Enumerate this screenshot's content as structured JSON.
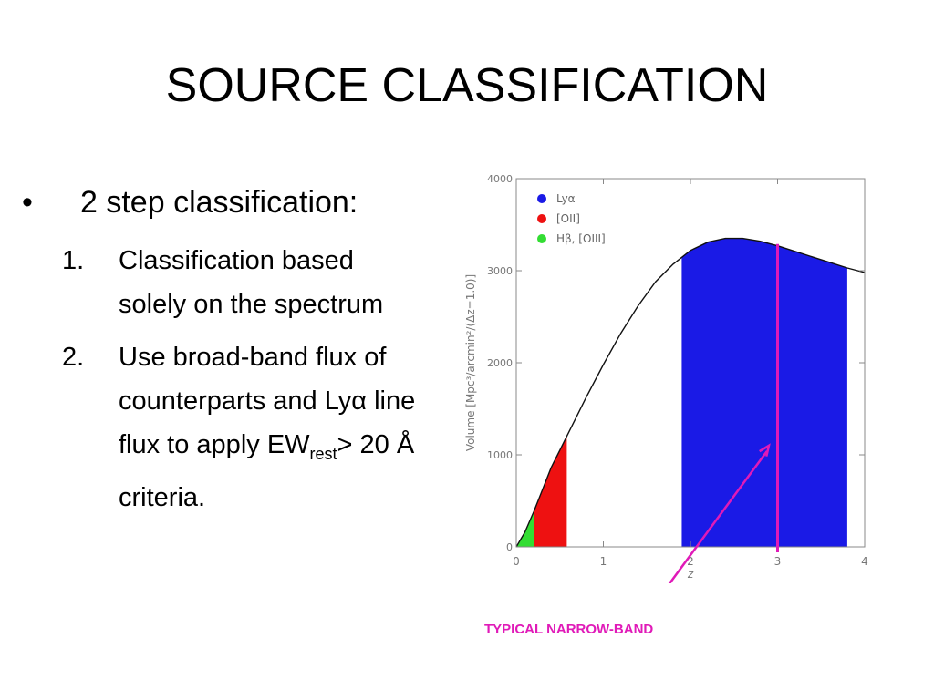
{
  "slide": {
    "title": "SOURCE CLASSIFICATION",
    "bullet_marker": "•",
    "bullet": "2 step classification:",
    "items": [
      {
        "num": "1.",
        "text": "Classification based solely on the spectrum"
      },
      {
        "num": "2.",
        "text_before": "Use broad-band flux of counterparts  and Lyα line flux to apply EW",
        "subscript": "rest",
        "text_after": "> 20 Å criteria."
      }
    ]
  },
  "chart_data": {
    "type": "area",
    "xlabel": "z",
    "ylabel": "Volume [Mpc³/arcmin²/(Δz=1.0)]",
    "xlim": [
      0,
      4
    ],
    "ylim": [
      0,
      4000
    ],
    "x_ticks": [
      "0",
      "1",
      "2",
      "3",
      "4"
    ],
    "y_ticks": [
      "0",
      "1000",
      "2000",
      "3000",
      "4000"
    ],
    "grid": false,
    "legend_position": "top-left",
    "curve": {
      "x": [
        0,
        0.1,
        0.2,
        0.3,
        0.4,
        0.5,
        0.6,
        0.8,
        1.0,
        1.2,
        1.4,
        1.6,
        1.8,
        2.0,
        2.2,
        2.4,
        2.6,
        2.8,
        3.0,
        3.2,
        3.4,
        3.6,
        3.8,
        4.0
      ],
      "y": [
        0,
        160,
        380,
        620,
        860,
        1050,
        1240,
        1620,
        1980,
        2320,
        2620,
        2880,
        3070,
        3220,
        3310,
        3350,
        3350,
        3320,
        3270,
        3210,
        3150,
        3090,
        3030,
        2980
      ]
    },
    "series": [
      {
        "name": "Lyα",
        "color": "#1a1ae6",
        "z_range": [
          1.9,
          3.8
        ]
      },
      {
        "name": "[OII]",
        "color": "#ee1111",
        "z_range": [
          0.2,
          0.58
        ]
      },
      {
        "name": "Hβ, [OIII]",
        "color": "#33dd33",
        "z_range": [
          0.0,
          0.2
        ]
      }
    ],
    "marker": {
      "z": 3.0,
      "color": "#e01ab8"
    },
    "annotation": {
      "text": "TYPICAL NARROW-BAND",
      "color": "#e01ab8",
      "arrow_target": [
        2.9,
        1100
      ]
    }
  }
}
